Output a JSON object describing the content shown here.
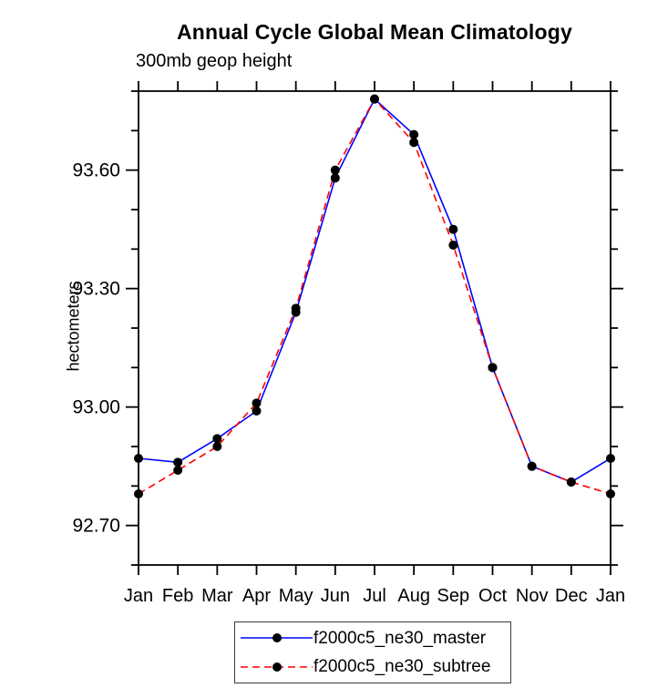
{
  "chart_data": {
    "type": "line",
    "title": "Annual Cycle Global Mean Climatology",
    "subtitle": "300mb geop height",
    "xlabel": "",
    "ylabel": "hectometers",
    "categories": [
      "Jan",
      "Feb",
      "Mar",
      "Apr",
      "May",
      "Jun",
      "Jul",
      "Aug",
      "Sep",
      "Oct",
      "Nov",
      "Dec",
      "Jan"
    ],
    "series": [
      {
        "name": "f2000c5_ne30_master",
        "color": "#0000ff",
        "style": "solid",
        "marker": "filled-circle",
        "values": [
          92.87,
          92.86,
          92.92,
          92.99,
          93.24,
          93.58,
          93.78,
          93.69,
          93.45,
          93.1,
          92.85,
          92.81,
          92.87
        ]
      },
      {
        "name": "f2000c5_ne30_subtree",
        "color": "#ff0000",
        "style": "dashed",
        "marker": "filled-circle",
        "values": [
          92.78,
          92.84,
          92.9,
          93.01,
          93.25,
          93.6,
          93.78,
          93.67,
          93.41,
          93.1,
          92.85,
          92.81,
          92.78
        ]
      }
    ],
    "ylim": [
      92.6,
      93.8
    ],
    "ytick_major": [
      92.7,
      93.0,
      93.3,
      93.6
    ],
    "ytick_labels": [
      "92.70",
      "93.00",
      "93.30",
      "93.60"
    ],
    "ytick_minor_step": 0.1,
    "grid": false,
    "tick_direction": "out",
    "legend_position": "bottom-center-boxed"
  },
  "colors": {
    "axis": "#000000",
    "marker": "#000000",
    "background": "#ffffff",
    "legend_border": "#3a3a3a"
  }
}
